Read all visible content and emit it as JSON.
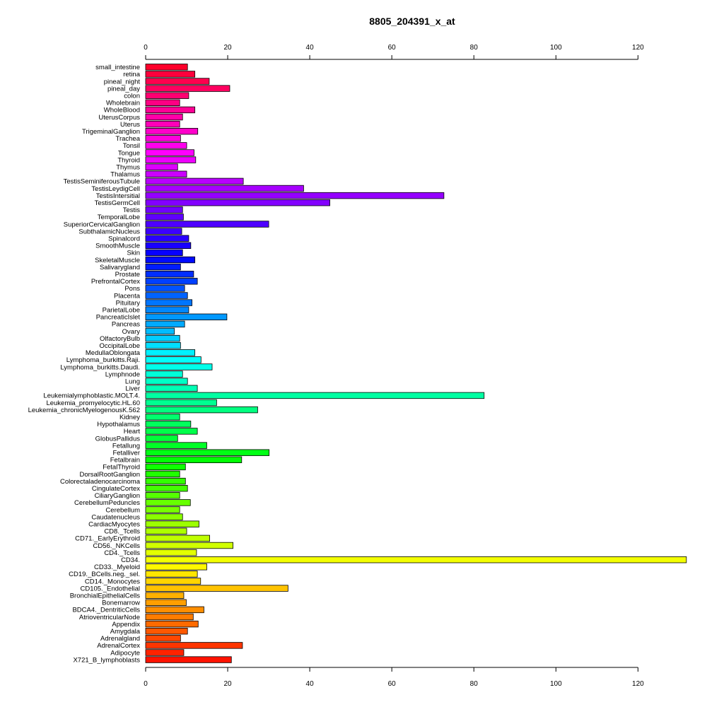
{
  "chart_data": {
    "type": "bar",
    "orientation": "horizontal",
    "title": "8805_204391_x_at",
    "xlim": [
      0,
      132
    ],
    "xticks": [
      0,
      20,
      40,
      60,
      80,
      100,
      120
    ],
    "categories": [
      "small_intestine",
      "retina",
      "pineal_night",
      "pineal_day",
      "colon",
      "Wholebrain",
      "WholeBlood",
      "UterusCorpus",
      "Uterus",
      "TrigeminalGanglion",
      "Trachea",
      "Tonsil",
      "Tongue",
      "Thyroid",
      "Thymus",
      "Thalamus",
      "TestisSeminiferousTubule",
      "TestisLeydigCell",
      "TestisIntersitial",
      "TestisGermCell",
      "Testis",
      "TemporalLobe",
      "SuperiorCervicalGanglion",
      "SubthalamicNucleus",
      "Spinalcord",
      "SmoothMuscle",
      "Skin",
      "SkeletalMuscle",
      "Salivarygland",
      "Prostate",
      "PrefrontalCortex",
      "Pons",
      "Placenta",
      "Pituitary",
      "ParietalLobe",
      "PancreaticIslet",
      "Pancreas",
      "Ovary",
      "OlfactoryBulb",
      "OccipitalLobe",
      "MedullaOblongata",
      "Lymphoma_burkitts.Raji.",
      "Lymphoma_burkitts.Daudi.",
      "Lymphnode",
      "Lung",
      "Liver",
      "Leukemialymphoblastic.MOLT.4.",
      "Leukemia_promyelocytic.HL.60",
      "Leukemia_chronicMyelogenousK.562",
      "Kidney",
      "Hypothalamus",
      "Heart",
      "GlobusPallidus",
      "Fetallung",
      "Fetalliver",
      "Fetalbrain",
      "FetalThyroid",
      "DorsalRootGanglion",
      "Colorectaladenocarcinoma",
      "CingulateCortex",
      "CiliaryGanglion",
      "CerebellumPeduncles",
      "Cerebellum",
      "Caudatenucleus",
      "CardiacMyocytes",
      "CD8._Tcells",
      "CD71._EarlyErythroid",
      "CD56._NKCells",
      "CD4._Tcells",
      "CD34.",
      "CD33._Myeloid",
      "CD19._BCells.neg._sel.",
      "CD14._Monocytes",
      "CD105._Endothelial",
      "BronchialEpithelialCells",
      "Bonemarrow",
      "BDCA4._DentriticCells",
      "AtrioventricularNode",
      "Appendix",
      "Amygdala",
      "Adrenalgland",
      "AdrenalCortex",
      "Adipocyte",
      "X721_B_lymphoblasts"
    ],
    "values": [
      10.2,
      12.0,
      15.5,
      20.5,
      10.5,
      8.3,
      12.0,
      9.0,
      8.3,
      12.7,
      8.5,
      10.0,
      11.8,
      12.2,
      7.8,
      10.0,
      23.8,
      38.5,
      72.7,
      44.9,
      9.0,
      9.2,
      30.0,
      8.8,
      10.5,
      11.0,
      9.0,
      12.0,
      8.5,
      11.7,
      12.6,
      9.5,
      10.2,
      11.3,
      10.5,
      19.8,
      9.5,
      7.0,
      8.3,
      8.5,
      12.0,
      13.5,
      16.2,
      9.0,
      10.2,
      12.6,
      82.5,
      17.3,
      27.3,
      8.3,
      11.0,
      12.6,
      7.8,
      14.9,
      30.1,
      23.4,
      9.7,
      8.3,
      9.7,
      10.2,
      8.3,
      10.9,
      8.3,
      9.0,
      13.0,
      10.0,
      15.6,
      21.3,
      12.4,
      131.8,
      14.9,
      12.6,
      13.4,
      34.7,
      9.3,
      9.9,
      14.2,
      11.6,
      12.8,
      10.2,
      8.5,
      23.6,
      9.3,
      20.9
    ]
  }
}
